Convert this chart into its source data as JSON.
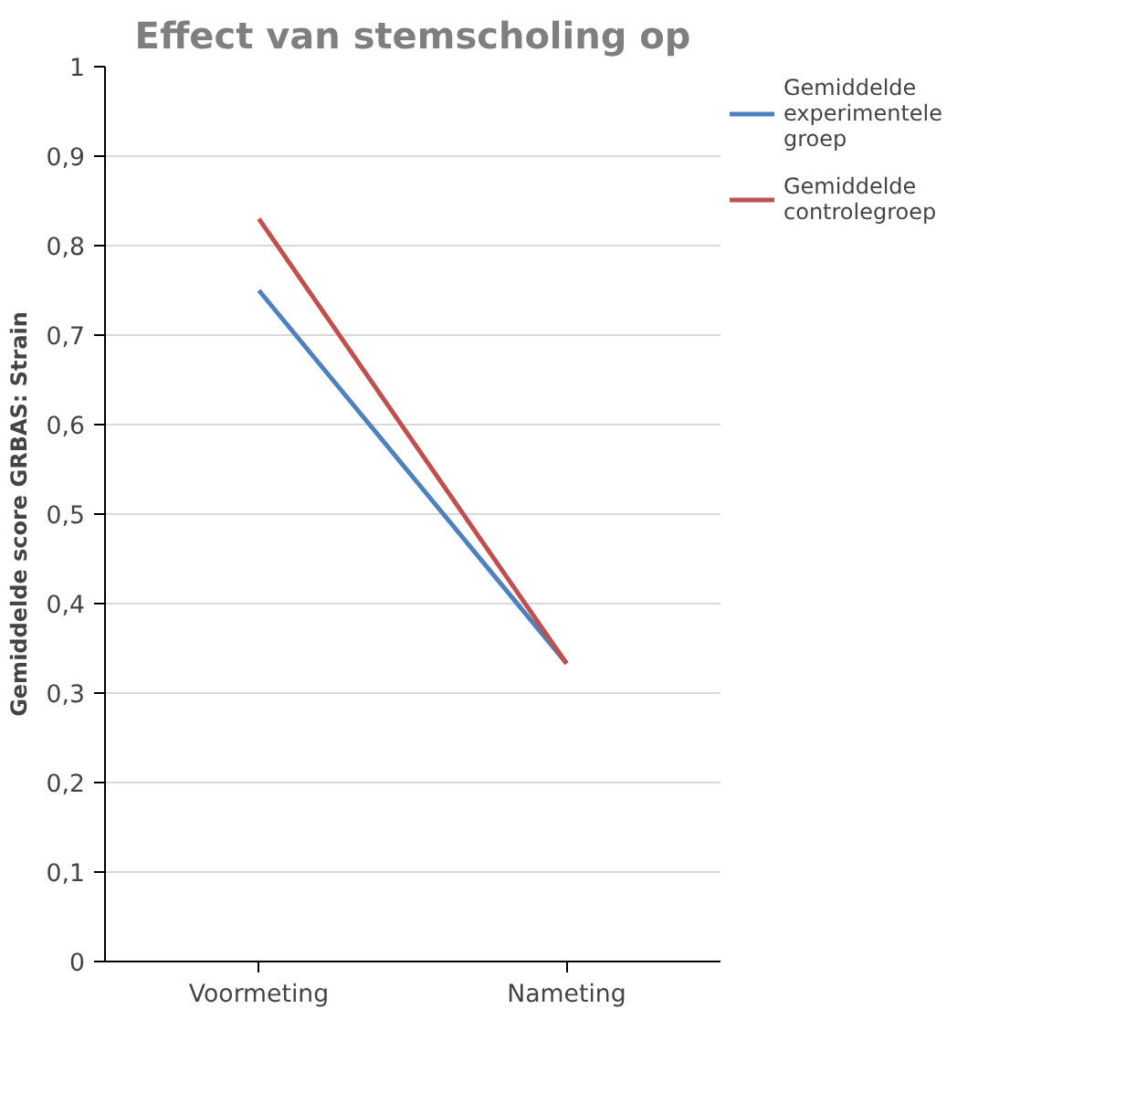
{
  "chart_data": {
    "type": "line",
    "title": "Effect van stemscholing op",
    "ylabel": "Gemiddelde score GRBAS: Strain",
    "categories": [
      "Voormeting",
      "Nameting"
    ],
    "series": [
      {
        "name": "Gemiddelde experimentele groep",
        "color": "#4f81bd",
        "values": [
          0.75,
          0.333
        ]
      },
      {
        "name": "Gemiddelde controlegroep",
        "color": "#c0504d",
        "values": [
          0.83,
          0.333
        ]
      }
    ],
    "ylim": [
      0,
      1
    ],
    "yticks": [
      0,
      {
        "value": 0.1,
        "label": "0,1"
      },
      {
        "value": 0.2,
        "label": "0,2"
      },
      {
        "value": 0.3,
        "label": "0,3"
      },
      {
        "value": 0.4,
        "label": "0,4"
      },
      {
        "value": 0.5,
        "label": "0,5"
      },
      {
        "value": 0.6,
        "label": "0,6"
      },
      {
        "value": 0.7,
        "label": "0,7"
      },
      {
        "value": 0.8,
        "label": "0,8"
      },
      {
        "value": 0.9,
        "label": "0,9"
      },
      1
    ],
    "grid": "y",
    "legend": "top right",
    "line_style": "solid"
  }
}
